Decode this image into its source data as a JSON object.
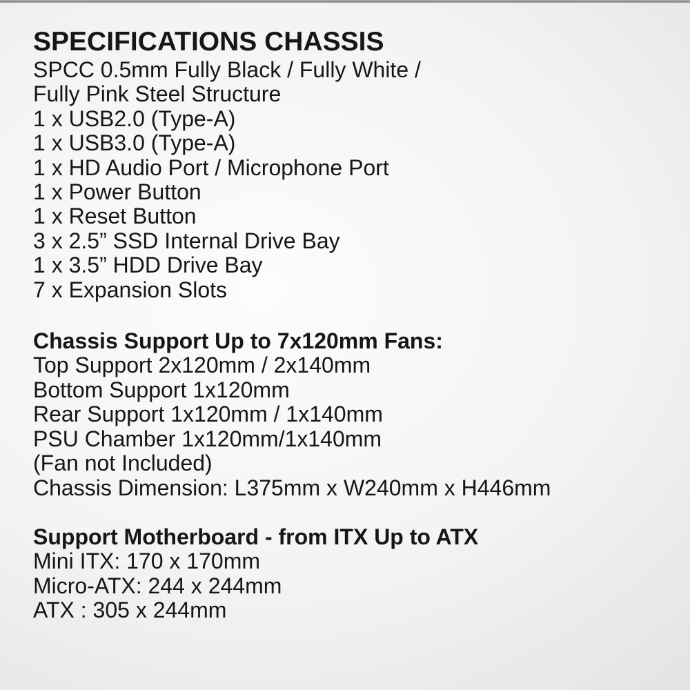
{
  "page": {
    "title": "SPECIFICATIONS CHASSIS",
    "text_color": "#161616",
    "background": {
      "style": "silver-radial-gradient",
      "highlight": "#fcfcfb",
      "mid": "#e6e6e5",
      "edge": "#cbcbcd",
      "top_edge_line": "#9c9c9c"
    },
    "sections": [
      {
        "name": "general-specs",
        "heading": null,
        "lines": [
          "SPCC 0.5mm Fully Black / Fully White /",
          "Fully Pink Steel Structure",
          "1 x USB2.0 (Type-A)",
          "1 x USB3.0 (Type-A)",
          "1 x HD Audio Port / Microphone Port",
          "1 x Power Button",
          "1 x Reset Button",
          "3 x 2.5” SSD Internal Drive Bay",
          "1 x 3.5” HDD Drive Bay",
          "7 x Expansion Slots"
        ]
      },
      {
        "name": "fan-support",
        "heading": "Chassis Support Up to 7x120mm Fans:",
        "lines": [
          "Top Support 2x120mm / 2x140mm",
          "Bottom Support 1x120mm",
          "Rear Support 1x120mm / 1x140mm",
          "PSU Chamber 1x120mm/1x140mm",
          "(Fan not Included)",
          "Chassis Dimension: L375mm x W240mm x H446mm"
        ]
      },
      {
        "name": "motherboard-support",
        "heading": "Support Motherboard - from ITX Up to ATX",
        "lines": [
          "Mini ITX: 170 x 170mm",
          "Micro-ATX: 244 x 244mm",
          "ATX : 305 x 244mm"
        ]
      }
    ]
  }
}
